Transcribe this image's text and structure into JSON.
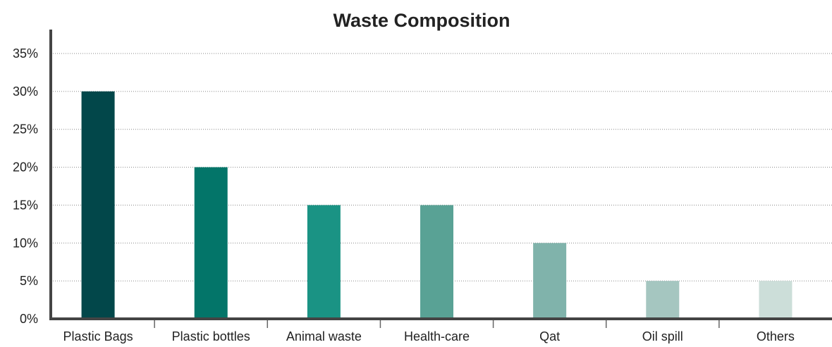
{
  "chart_data": {
    "type": "bar",
    "title": "Waste Composition",
    "xlabel": "",
    "ylabel": "",
    "categories": [
      "Plastic Bags",
      "Plastic bottles",
      "Animal waste",
      "Health-care",
      "Qat",
      "Oil spill",
      "Others"
    ],
    "values": [
      30,
      20,
      15,
      15,
      10,
      5,
      5
    ],
    "unit": "%",
    "ylim": [
      0,
      35
    ],
    "yticks": [
      "0%",
      "5%",
      "10%",
      "15%",
      "20%",
      "25%",
      "30%",
      "35%"
    ],
    "bar_colors": [
      "#02474A",
      "#037569",
      "#1A9384",
      "#59A295",
      "#80B3AB",
      "#A5C6C0",
      "#CCDED9"
    ],
    "grid": true,
    "legend": "none"
  }
}
